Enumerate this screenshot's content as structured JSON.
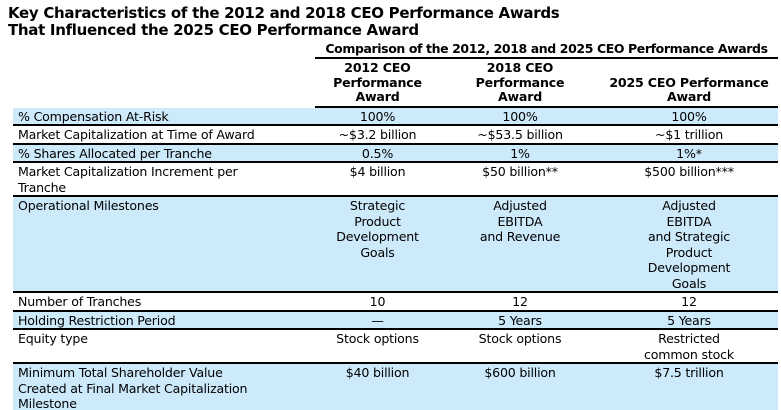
{
  "title": {
    "line1": "Key Characteristics of the 2012 and 2018 CEO Performance Awards",
    "line2": "That Influenced the 2025 CEO Performance Award"
  },
  "table": {
    "caption": "Comparison of the 2012, 2018 and 2025 CEO Performance Awards",
    "column_headers": [
      "2012 CEO\nPerformance Award",
      "2018 CEO\nPerformance\nAward",
      "2025 CEO Performance\nAward"
    ],
    "rows": [
      {
        "label": "% Compensation At-Risk",
        "values": [
          "100%",
          "100%",
          "100%"
        ],
        "highlight": true
      },
      {
        "label": "Market Capitalization at Time of Award",
        "values": [
          "~$3.2 billion",
          "~$53.5 billion",
          "~$1 trillion"
        ],
        "highlight": false
      },
      {
        "label": "% Shares Allocated per Tranche",
        "values": [
          "0.5%",
          "1%",
          "1%*"
        ],
        "highlight": true
      },
      {
        "label": "Market Capitalization Increment per\nTranche",
        "values": [
          "$4 billion",
          "$50 billion**",
          "$500 billion***"
        ],
        "highlight": false
      },
      {
        "label": "Operational Milestones",
        "values": [
          "Strategic\nProduct\nDevelopment\nGoals",
          "Adjusted\nEBITDA\nand Revenue",
          "Adjusted\nEBITDA\nand Strategic\nProduct\nDevelopment\nGoals"
        ],
        "highlight": true
      },
      {
        "label": "Number of Tranches",
        "values": [
          "10",
          "12",
          "12"
        ],
        "highlight": false
      },
      {
        "label": "Holding Restriction Period",
        "values": [
          "—",
          "5 Years",
          "5 Years"
        ],
        "highlight": true
      },
      {
        "label": "Equity type",
        "values": [
          "Stock options",
          "Stock options",
          "Restricted\ncommon stock"
        ],
        "highlight": false
      },
      {
        "label": "Minimum Total Shareholder Value\nCreated at Final Market Capitalization\nMilestone",
        "values": [
          "$40 billion",
          "$600 billion",
          "$7.5 trillion"
        ],
        "highlight": true
      }
    ]
  },
  "colors": {
    "highlight_row": "#cdeafb",
    "text": "#000000",
    "rule": "#000000",
    "background": "#ffffff"
  }
}
